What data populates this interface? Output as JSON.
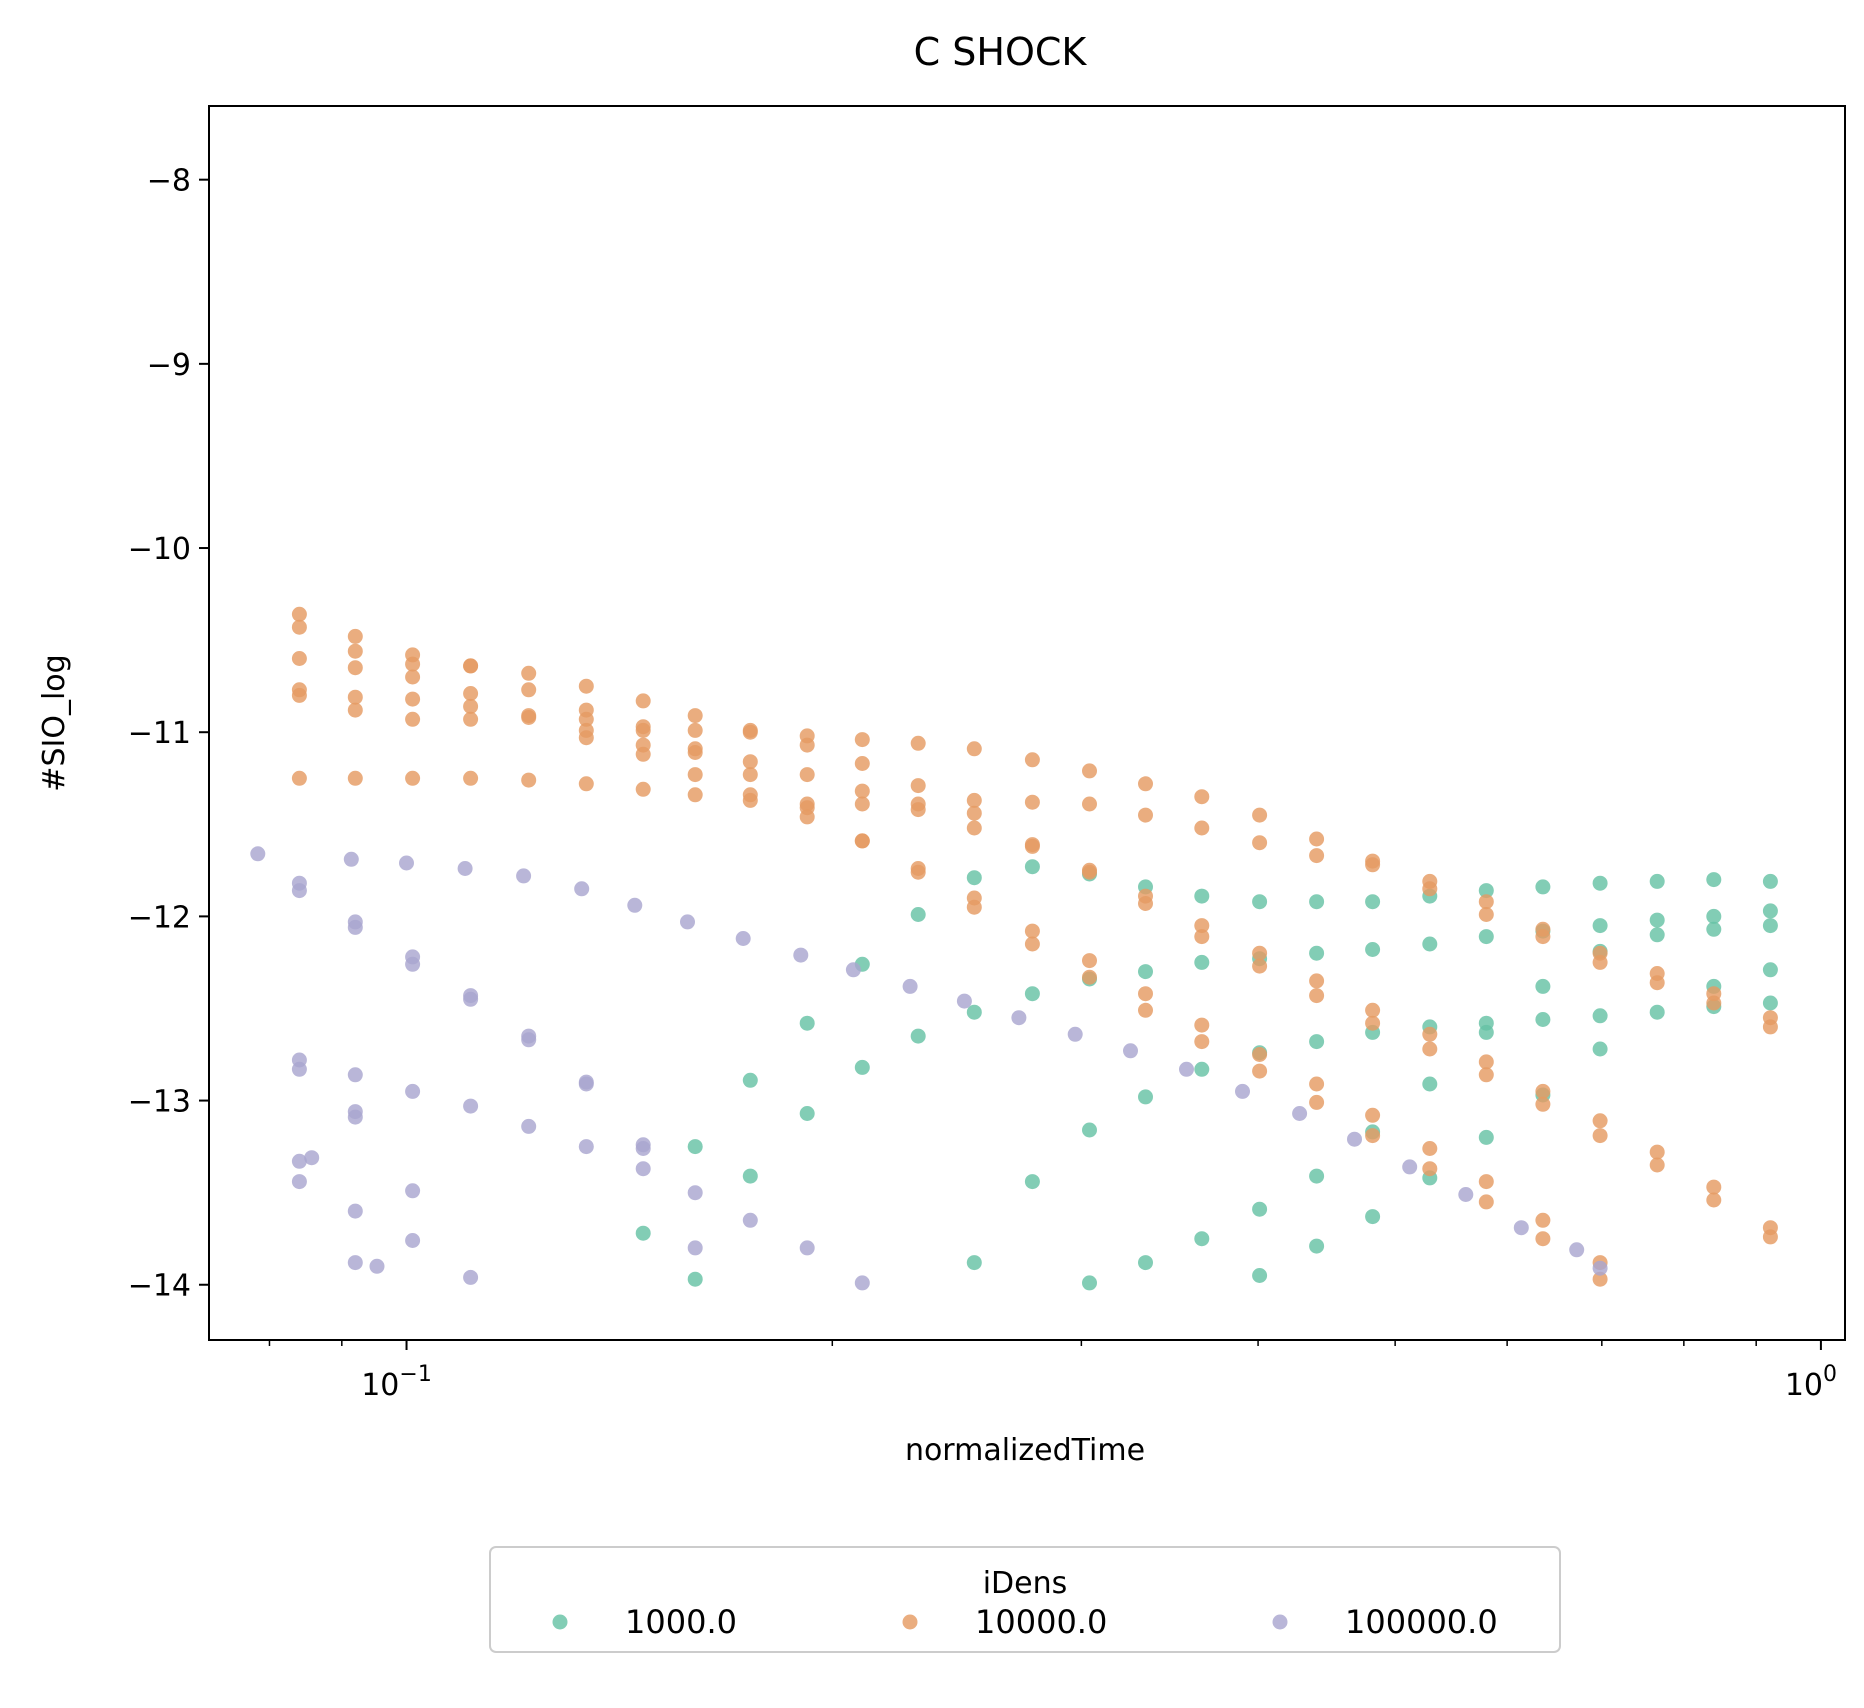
{
  "chart_data": {
    "type": "scatter",
    "title": "C SHOCK",
    "xlabel": "normalizedTime",
    "ylabel": "#SIO_log",
    "x_scale": "log",
    "xlim": [
      0.0725,
      1.04
    ],
    "ylim": [
      -14.3,
      -7.6
    ],
    "x_ticks": [
      {
        "value": 0.1,
        "base": "10",
        "exp": "−1"
      },
      {
        "value": 1.0,
        "base": "10",
        "exp": "0"
      }
    ],
    "y_ticks": [
      {
        "value": -8,
        "label": "−8"
      },
      {
        "value": -9,
        "label": "−9"
      },
      {
        "value": -10,
        "label": "−10"
      },
      {
        "value": -11,
        "label": "−11"
      },
      {
        "value": -12,
        "label": "−12"
      },
      {
        "value": -13,
        "label": "−13"
      },
      {
        "value": -14,
        "label": "−14"
      }
    ],
    "grid": false,
    "legend": {
      "title": "iDens",
      "placement": "bottom-center, below the plot, one row"
    },
    "series": [
      {
        "name": "1000.0",
        "color": "#66c2a5",
        "points": [
          [
            0.16,
            -13.25
          ],
          [
            0.16,
            -13.97
          ],
          [
            0.147,
            -13.72
          ],
          [
            0.175,
            -12.89
          ],
          [
            0.175,
            -13.41
          ],
          [
            0.192,
            -12.58
          ],
          [
            0.192,
            -13.07
          ],
          [
            0.21,
            -12.26
          ],
          [
            0.21,
            -12.82
          ],
          [
            0.23,
            -11.99
          ],
          [
            0.23,
            -12.65
          ],
          [
            0.252,
            -11.79
          ],
          [
            0.252,
            -12.52
          ],
          [
            0.252,
            -13.88
          ],
          [
            0.277,
            -11.73
          ],
          [
            0.277,
            -12.42
          ],
          [
            0.277,
            -13.44
          ],
          [
            0.304,
            -11.77
          ],
          [
            0.304,
            -12.34
          ],
          [
            0.304,
            -13.16
          ],
          [
            0.304,
            -13.99
          ],
          [
            0.333,
            -11.84
          ],
          [
            0.333,
            -12.3
          ],
          [
            0.333,
            -12.98
          ],
          [
            0.333,
            -13.88
          ],
          [
            0.365,
            -11.89
          ],
          [
            0.365,
            -12.25
          ],
          [
            0.365,
            -12.83
          ],
          [
            0.365,
            -13.75
          ],
          [
            0.401,
            -11.92
          ],
          [
            0.401,
            -12.23
          ],
          [
            0.401,
            -12.74
          ],
          [
            0.401,
            -13.59
          ],
          [
            0.401,
            -13.95
          ],
          [
            0.44,
            -11.92
          ],
          [
            0.44,
            -12.2
          ],
          [
            0.44,
            -12.68
          ],
          [
            0.44,
            -13.41
          ],
          [
            0.44,
            -13.79
          ],
          [
            0.482,
            -11.92
          ],
          [
            0.482,
            -12.18
          ],
          [
            0.482,
            -12.63
          ],
          [
            0.482,
            -13.17
          ],
          [
            0.482,
            -13.63
          ],
          [
            0.529,
            -11.89
          ],
          [
            0.529,
            -12.15
          ],
          [
            0.529,
            -12.6
          ],
          [
            0.529,
            -12.91
          ],
          [
            0.529,
            -13.42
          ],
          [
            0.58,
            -11.86
          ],
          [
            0.58,
            -12.11
          ],
          [
            0.58,
            -12.58
          ],
          [
            0.58,
            -12.63
          ],
          [
            0.58,
            -13.2
          ],
          [
            0.636,
            -11.84
          ],
          [
            0.636,
            -12.08
          ],
          [
            0.636,
            -12.38
          ],
          [
            0.636,
            -12.56
          ],
          [
            0.636,
            -12.97
          ],
          [
            0.698,
            -11.82
          ],
          [
            0.698,
            -12.05
          ],
          [
            0.698,
            -12.19
          ],
          [
            0.698,
            -12.54
          ],
          [
            0.698,
            -12.72
          ],
          [
            0.766,
            -11.81
          ],
          [
            0.766,
            -12.02
          ],
          [
            0.766,
            -12.1
          ],
          [
            0.766,
            -12.52
          ],
          [
            0.84,
            -11.8
          ],
          [
            0.84,
            -12.0
          ],
          [
            0.84,
            -12.07
          ],
          [
            0.84,
            -12.38
          ],
          [
            0.84,
            -12.49
          ],
          [
            0.921,
            -11.81
          ],
          [
            0.921,
            -11.97
          ],
          [
            0.921,
            -12.05
          ],
          [
            0.921,
            -12.29
          ],
          [
            0.921,
            -12.47
          ]
        ]
      },
      {
        "name": "10000.0",
        "color": "#e59b63",
        "points": [
          [
            0.084,
            -10.36
          ],
          [
            0.084,
            -10.43
          ],
          [
            0.084,
            -10.6
          ],
          [
            0.084,
            -10.77
          ],
          [
            0.084,
            -10.8
          ],
          [
            0.084,
            -11.25
          ],
          [
            0.092,
            -10.48
          ],
          [
            0.092,
            -10.56
          ],
          [
            0.092,
            -10.65
          ],
          [
            0.092,
            -10.81
          ],
          [
            0.092,
            -10.88
          ],
          [
            0.092,
            -11.25
          ],
          [
            0.101,
            -10.58
          ],
          [
            0.101,
            -10.63
          ],
          [
            0.101,
            -10.7
          ],
          [
            0.101,
            -10.82
          ],
          [
            0.101,
            -10.93
          ],
          [
            0.101,
            -11.25
          ],
          [
            0.111,
            -10.64
          ],
          [
            0.111,
            -10.64
          ],
          [
            0.111,
            -10.79
          ],
          [
            0.111,
            -10.86
          ],
          [
            0.111,
            -10.93
          ],
          [
            0.111,
            -11.25
          ],
          [
            0.122,
            -10.68
          ],
          [
            0.122,
            -10.77
          ],
          [
            0.122,
            -10.91
          ],
          [
            0.122,
            -10.92
          ],
          [
            0.122,
            -11.26
          ],
          [
            0.134,
            -10.75
          ],
          [
            0.134,
            -10.88
          ],
          [
            0.134,
            -10.93
          ],
          [
            0.134,
            -10.99
          ],
          [
            0.134,
            -11.03
          ],
          [
            0.134,
            -11.28
          ],
          [
            0.147,
            -10.83
          ],
          [
            0.147,
            -10.97
          ],
          [
            0.147,
            -10.99
          ],
          [
            0.147,
            -11.07
          ],
          [
            0.147,
            -11.12
          ],
          [
            0.147,
            -11.31
          ],
          [
            0.16,
            -10.91
          ],
          [
            0.16,
            -10.99
          ],
          [
            0.16,
            -11.09
          ],
          [
            0.16,
            -11.11
          ],
          [
            0.16,
            -11.23
          ],
          [
            0.16,
            -11.34
          ],
          [
            0.175,
            -10.99
          ],
          [
            0.175,
            -11.0
          ],
          [
            0.175,
            -11.16
          ],
          [
            0.175,
            -11.23
          ],
          [
            0.175,
            -11.34
          ],
          [
            0.175,
            -11.37
          ],
          [
            0.192,
            -11.02
          ],
          [
            0.192,
            -11.07
          ],
          [
            0.192,
            -11.23
          ],
          [
            0.192,
            -11.39
          ],
          [
            0.192,
            -11.41
          ],
          [
            0.192,
            -11.46
          ],
          [
            0.21,
            -11.04
          ],
          [
            0.21,
            -11.17
          ],
          [
            0.21,
            -11.32
          ],
          [
            0.21,
            -11.39
          ],
          [
            0.21,
            -11.59
          ],
          [
            0.21,
            -11.59
          ],
          [
            0.23,
            -11.06
          ],
          [
            0.23,
            -11.29
          ],
          [
            0.23,
            -11.39
          ],
          [
            0.23,
            -11.42
          ],
          [
            0.23,
            -11.74
          ],
          [
            0.23,
            -11.76
          ],
          [
            0.252,
            -11.09
          ],
          [
            0.252,
            -11.37
          ],
          [
            0.252,
            -11.44
          ],
          [
            0.252,
            -11.52
          ],
          [
            0.252,
            -11.9
          ],
          [
            0.252,
            -11.95
          ],
          [
            0.277,
            -11.15
          ],
          [
            0.277,
            -11.38
          ],
          [
            0.277,
            -11.61
          ],
          [
            0.277,
            -11.62
          ],
          [
            0.277,
            -12.08
          ],
          [
            0.277,
            -12.15
          ],
          [
            0.304,
            -11.21
          ],
          [
            0.304,
            -11.39
          ],
          [
            0.304,
            -11.75
          ],
          [
            0.304,
            -11.76
          ],
          [
            0.304,
            -12.24
          ],
          [
            0.304,
            -12.33
          ],
          [
            0.333,
            -11.28
          ],
          [
            0.333,
            -11.45
          ],
          [
            0.333,
            -11.89
          ],
          [
            0.333,
            -11.93
          ],
          [
            0.333,
            -12.42
          ],
          [
            0.333,
            -12.51
          ],
          [
            0.365,
            -11.35
          ],
          [
            0.365,
            -11.52
          ],
          [
            0.365,
            -12.05
          ],
          [
            0.365,
            -12.11
          ],
          [
            0.365,
            -12.59
          ],
          [
            0.365,
            -12.68
          ],
          [
            0.401,
            -11.45
          ],
          [
            0.401,
            -11.6
          ],
          [
            0.401,
            -12.2
          ],
          [
            0.401,
            -12.27
          ],
          [
            0.401,
            -12.75
          ],
          [
            0.401,
            -12.84
          ],
          [
            0.44,
            -11.58
          ],
          [
            0.44,
            -11.67
          ],
          [
            0.44,
            -12.35
          ],
          [
            0.44,
            -12.43
          ],
          [
            0.44,
            -12.91
          ],
          [
            0.44,
            -13.01
          ],
          [
            0.482,
            -11.7
          ],
          [
            0.482,
            -11.72
          ],
          [
            0.482,
            -12.51
          ],
          [
            0.482,
            -12.58
          ],
          [
            0.482,
            -13.08
          ],
          [
            0.482,
            -13.19
          ],
          [
            0.529,
            -11.81
          ],
          [
            0.529,
            -11.85
          ],
          [
            0.529,
            -12.64
          ],
          [
            0.529,
            -12.72
          ],
          [
            0.529,
            -13.26
          ],
          [
            0.529,
            -13.37
          ],
          [
            0.58,
            -11.92
          ],
          [
            0.58,
            -11.99
          ],
          [
            0.58,
            -12.79
          ],
          [
            0.58,
            -12.86
          ],
          [
            0.58,
            -13.44
          ],
          [
            0.58,
            -13.55
          ],
          [
            0.636,
            -12.07
          ],
          [
            0.636,
            -12.11
          ],
          [
            0.636,
            -12.95
          ],
          [
            0.636,
            -13.02
          ],
          [
            0.636,
            -13.65
          ],
          [
            0.636,
            -13.75
          ],
          [
            0.698,
            -12.2
          ],
          [
            0.698,
            -12.25
          ],
          [
            0.698,
            -13.11
          ],
          [
            0.698,
            -13.19
          ],
          [
            0.698,
            -13.88
          ],
          [
            0.698,
            -13.97
          ],
          [
            0.766,
            -12.31
          ],
          [
            0.766,
            -12.36
          ],
          [
            0.766,
            -13.28
          ],
          [
            0.766,
            -13.35
          ],
          [
            0.84,
            -12.42
          ],
          [
            0.84,
            -12.47
          ],
          [
            0.84,
            -13.47
          ],
          [
            0.84,
            -13.54
          ],
          [
            0.921,
            -12.55
          ],
          [
            0.921,
            -12.6
          ],
          [
            0.921,
            -13.69
          ],
          [
            0.921,
            -13.74
          ]
        ]
      },
      {
        "name": "100000.0",
        "color": "#a9a6cf",
        "points": [
          [
            0.0785,
            -11.66
          ],
          [
            0.084,
            -11.82
          ],
          [
            0.084,
            -11.86
          ],
          [
            0.084,
            -12.78
          ],
          [
            0.084,
            -12.83
          ],
          [
            0.084,
            -13.33
          ],
          [
            0.084,
            -13.44
          ],
          [
            0.0857,
            -13.31
          ],
          [
            0.0914,
            -11.69
          ],
          [
            0.092,
            -12.03
          ],
          [
            0.092,
            -12.06
          ],
          [
            0.092,
            -12.86
          ],
          [
            0.092,
            -13.06
          ],
          [
            0.092,
            -13.09
          ],
          [
            0.092,
            -13.6
          ],
          [
            0.092,
            -13.88
          ],
          [
            0.0953,
            -13.9
          ],
          [
            0.1,
            -11.71
          ],
          [
            0.101,
            -12.22
          ],
          [
            0.101,
            -12.26
          ],
          [
            0.101,
            -12.95
          ],
          [
            0.101,
            -13.49
          ],
          [
            0.101,
            -13.76
          ],
          [
            0.11,
            -11.74
          ],
          [
            0.111,
            -12.43
          ],
          [
            0.111,
            -12.45
          ],
          [
            0.111,
            -13.03
          ],
          [
            0.111,
            -13.96
          ],
          [
            0.121,
            -11.78
          ],
          [
            0.122,
            -12.65
          ],
          [
            0.122,
            -12.67
          ],
          [
            0.122,
            -13.14
          ],
          [
            0.133,
            -11.85
          ],
          [
            0.134,
            -12.9
          ],
          [
            0.134,
            -12.91
          ],
          [
            0.134,
            -13.25
          ],
          [
            0.145,
            -11.94
          ],
          [
            0.147,
            -13.24
          ],
          [
            0.147,
            -13.26
          ],
          [
            0.147,
            -13.37
          ],
          [
            0.158,
            -12.03
          ],
          [
            0.16,
            -13.5
          ],
          [
            0.16,
            -13.8
          ],
          [
            0.173,
            -12.12
          ],
          [
            0.175,
            -13.65
          ],
          [
            0.19,
            -12.21
          ],
          [
            0.192,
            -13.8
          ],
          [
            0.207,
            -12.29
          ],
          [
            0.21,
            -13.99
          ],
          [
            0.227,
            -12.38
          ],
          [
            0.248,
            -12.46
          ],
          [
            0.271,
            -12.55
          ],
          [
            0.297,
            -12.64
          ],
          [
            0.325,
            -12.73
          ],
          [
            0.356,
            -12.83
          ],
          [
            0.39,
            -12.95
          ],
          [
            0.428,
            -13.07
          ],
          [
            0.468,
            -13.21
          ],
          [
            0.512,
            -13.36
          ],
          [
            0.561,
            -13.51
          ],
          [
            0.614,
            -13.69
          ],
          [
            0.672,
            -13.81
          ],
          [
            0.698,
            -13.91
          ]
        ]
      }
    ]
  }
}
